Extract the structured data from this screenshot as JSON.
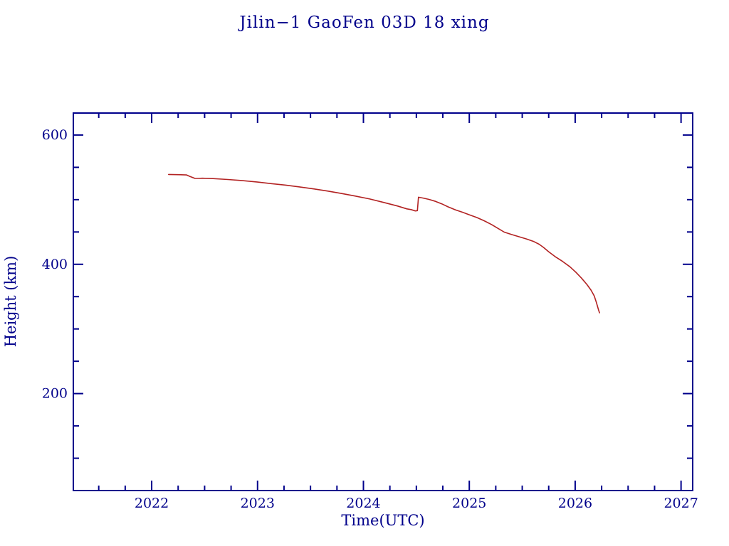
{
  "chart_data": {
    "type": "line",
    "title": "Jilin−1 GaoFen 03D 18 xing",
    "xlabel": "Time(UTC)",
    "ylabel": "Height (km)",
    "xlim": [
      2021.26,
      2027.11
    ],
    "ylim": [
      50,
      634
    ],
    "x_major_ticks": [
      2022,
      2023,
      2024,
      2025,
      2026,
      2027
    ],
    "x_minor_step": 0.25,
    "y_major_ticks": [
      200,
      400,
      600
    ],
    "y_minor_step": 50,
    "grid": false,
    "legend": "none",
    "axis_color": "#00008b",
    "text_color": "#00008b",
    "line_color": "#b22222",
    "background_color": "#ffffff",
    "series": [
      {
        "name": "orbital-height",
        "points": [
          [
            2022.16,
            539.0
          ],
          [
            2022.25,
            538.6
          ],
          [
            2022.33,
            538.2
          ],
          [
            2022.36,
            536.0
          ],
          [
            2022.41,
            532.8
          ],
          [
            2022.48,
            533.2
          ],
          [
            2022.58,
            532.6
          ],
          [
            2022.72,
            531.2
          ],
          [
            2022.85,
            529.6
          ],
          [
            2023.0,
            527.2
          ],
          [
            2023.13,
            524.8
          ],
          [
            2023.26,
            522.6
          ],
          [
            2023.39,
            519.8
          ],
          [
            2023.53,
            516.6
          ],
          [
            2023.66,
            513.4
          ],
          [
            2023.79,
            509.6
          ],
          [
            2023.92,
            505.6
          ],
          [
            2024.06,
            501.0
          ],
          [
            2024.19,
            495.8
          ],
          [
            2024.32,
            490.2
          ],
          [
            2024.41,
            485.8
          ],
          [
            2024.45,
            484.6
          ],
          [
            2024.49,
            482.6
          ],
          [
            2024.51,
            483.0
          ],
          [
            2024.52,
            503.8
          ],
          [
            2024.56,
            502.6
          ],
          [
            2024.62,
            500.4
          ],
          [
            2024.68,
            497.4
          ],
          [
            2024.74,
            493.6
          ],
          [
            2024.8,
            488.8
          ],
          [
            2024.87,
            484.2
          ],
          [
            2024.94,
            480.2
          ],
          [
            2025.0,
            476.6
          ],
          [
            2025.07,
            472.4
          ],
          [
            2025.14,
            467.4
          ],
          [
            2025.21,
            461.6
          ],
          [
            2025.27,
            455.6
          ],
          [
            2025.33,
            449.8
          ],
          [
            2025.4,
            446.0
          ],
          [
            2025.47,
            442.6
          ],
          [
            2025.54,
            439.2
          ],
          [
            2025.61,
            435.2
          ],
          [
            2025.66,
            431.0
          ],
          [
            2025.7,
            426.2
          ],
          [
            2025.75,
            419.4
          ],
          [
            2025.81,
            412.0
          ],
          [
            2025.88,
            404.6
          ],
          [
            2025.95,
            396.2
          ],
          [
            2026.01,
            387.2
          ],
          [
            2026.06,
            378.6
          ],
          [
            2026.11,
            369.0
          ],
          [
            2026.15,
            360.0
          ],
          [
            2026.18,
            351.0
          ],
          [
            2026.2,
            341.0
          ],
          [
            2026.22,
            330.0
          ],
          [
            2026.23,
            325.0
          ]
        ]
      }
    ]
  }
}
